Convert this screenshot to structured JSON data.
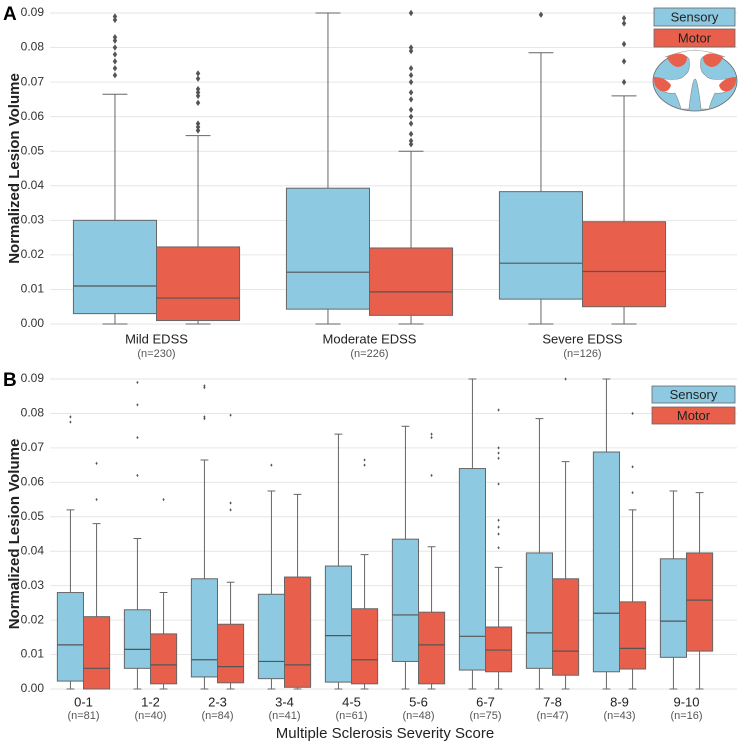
{
  "chart_data": [
    {
      "type": "box",
      "panel_label": "A",
      "ylabel": "Normalized Lesion Volume",
      "categories": [
        "Mild EDSS",
        "Moderate EDSS",
        "Severe EDSS"
      ],
      "n_labels": [
        "(n=230)",
        "(n=226)",
        "(n=126)"
      ],
      "ylim": [
        0,
        0.09
      ],
      "yticks": [
        {
          "value": 0,
          "label": "0.00"
        },
        0.01,
        0.02,
        0.03,
        0.04,
        0.05,
        0.06,
        0.07,
        0.08,
        0.09
      ],
      "grid": true,
      "legend": "upper right",
      "series": [
        {
          "name": "Sensory",
          "color": "#8ec9e2",
          "boxes": [
            {
              "whislo": 0,
              "q1": 0.003,
              "med": 0.011,
              "q3": 0.03,
              "whishi": 0.0665,
              "fliers": [
                0.089,
                0.088,
                0.083,
                0.082,
                0.08,
                0.078,
                0.076,
                0.074,
                0.072
              ]
            },
            {
              "whislo": 0,
              "q1": 0.0043,
              "med": 0.015,
              "q3": 0.0393,
              "whishi": 0.09,
              "fliers": []
            },
            {
              "whislo": 0,
              "q1": 0.0072,
              "med": 0.0176,
              "q3": 0.0383,
              "whishi": 0.0785,
              "fliers": [
                0.0895
              ]
            }
          ]
        },
        {
          "name": "Motor",
          "color": "#e8604c",
          "boxes": [
            {
              "whislo": 0,
              "q1": 0.001,
              "med": 0.0075,
              "q3": 0.0223,
              "whishi": 0.0545,
              "fliers": [
                0.0725,
                0.071,
                0.068,
                0.067,
                0.066,
                0.064,
                0.058,
                0.057,
                0.056
              ]
            },
            {
              "whislo": 0,
              "q1": 0.0025,
              "med": 0.0093,
              "q3": 0.022,
              "whishi": 0.05,
              "fliers": [
                0.09,
                0.08,
                0.079,
                0.074,
                0.072,
                0.07,
                0.067,
                0.065,
                0.062,
                0.06,
                0.058,
                0.055,
                0.053,
                0.052
              ]
            },
            {
              "whislo": 0,
              "q1": 0.005,
              "med": 0.0152,
              "q3": 0.0296,
              "whishi": 0.066,
              "fliers": [
                0.0885,
                0.087,
                0.081,
                0.076,
                0.07
              ]
            }
          ]
        }
      ]
    },
    {
      "type": "box",
      "panel_label": "B",
      "ylabel": "Normalized Lesion Volume",
      "xlabel": "Multiple Sclerosis Severity Score",
      "categories": [
        "0-1",
        "1-2",
        "2-3",
        "3-4",
        "4-5",
        "5-6",
        "6-7",
        "7-8",
        "8-9",
        "9-10"
      ],
      "n_labels": [
        "(n=81)",
        "(n=40)",
        "(n=84)",
        "(n=41)",
        "(n=61)",
        "(n=48)",
        "(n=75)",
        "(n=47)",
        "(n=43)",
        "(n=16)"
      ],
      "ylim": [
        0,
        0.09
      ],
      "yticks": [
        {
          "value": 0,
          "label": "0.00"
        },
        0.01,
        0.02,
        0.03,
        0.04,
        0.05,
        0.06,
        0.07,
        0.08,
        0.09
      ],
      "grid": true,
      "legend": "upper right",
      "series": [
        {
          "name": "Sensory",
          "color": "#8ec9e2",
          "boxes": [
            {
              "whislo": 0,
              "q1": 0.0023,
              "med": 0.0128,
              "q3": 0.028,
              "whishi": 0.052,
              "fliers": [
                0.079,
                0.0775
              ]
            },
            {
              "whislo": 0,
              "q1": 0.006,
              "med": 0.0115,
              "q3": 0.023,
              "whishi": 0.0437,
              "fliers": [
                0.089,
                0.0825,
                0.073,
                0.062
              ]
            },
            {
              "whislo": 0,
              "q1": 0.0035,
              "med": 0.0085,
              "q3": 0.032,
              "whishi": 0.0665,
              "fliers": [
                0.088,
                0.0875,
                0.079,
                0.0785
              ]
            },
            {
              "whislo": 0,
              "q1": 0.003,
              "med": 0.008,
              "q3": 0.0275,
              "whishi": 0.0575,
              "fliers": [
                0.065
              ]
            },
            {
              "whislo": 0,
              "q1": 0.002,
              "med": 0.0155,
              "q3": 0.0357,
              "whishi": 0.074,
              "fliers": []
            },
            {
              "whislo": 0,
              "q1": 0.008,
              "med": 0.0215,
              "q3": 0.0435,
              "whishi": 0.0763,
              "fliers": []
            },
            {
              "whislo": 0,
              "q1": 0.0055,
              "med": 0.0153,
              "q3": 0.064,
              "whishi": 0.09,
              "fliers": []
            },
            {
              "whislo": 0,
              "q1": 0.006,
              "med": 0.0163,
              "q3": 0.0395,
              "whishi": 0.0785,
              "fliers": []
            },
            {
              "whislo": 0,
              "q1": 0.005,
              "med": 0.022,
              "q3": 0.0688,
              "whishi": 0.09,
              "fliers": []
            },
            {
              "whislo": 0,
              "q1": 0.0092,
              "med": 0.0197,
              "q3": 0.0378,
              "whishi": 0.0575,
              "fliers": []
            }
          ]
        },
        {
          "name": "Motor",
          "color": "#e8604c",
          "boxes": [
            {
              "whislo": 0,
              "q1": 0,
              "med": 0.006,
              "q3": 0.021,
              "whishi": 0.048,
              "fliers": [
                0.0655,
                0.055
              ]
            },
            {
              "whislo": 0,
              "q1": 0.0015,
              "med": 0.007,
              "q3": 0.016,
              "whishi": 0.028,
              "fliers": [
                0.055
              ]
            },
            {
              "whislo": 0,
              "q1": 0.0018,
              "med": 0.0065,
              "q3": 0.0188,
              "whishi": 0.031,
              "fliers": [
                0.0795,
                0.054,
                0.052
              ]
            },
            {
              "whislo": 0,
              "q1": 0.0005,
              "med": 0.007,
              "q3": 0.0325,
              "whishi": 0.0565,
              "fliers": []
            },
            {
              "whislo": 0,
              "q1": 0.0015,
              "med": 0.0085,
              "q3": 0.0233,
              "whishi": 0.039,
              "fliers": [
                0.0665,
                0.065
              ]
            },
            {
              "whislo": 0,
              "q1": 0.0015,
              "med": 0.0128,
              "q3": 0.0223,
              "whishi": 0.0413,
              "fliers": [
                0.074,
                0.073,
                0.062
              ]
            },
            {
              "whislo": 0,
              "q1": 0.005,
              "med": 0.0113,
              "q3": 0.018,
              "whishi": 0.0353,
              "fliers": [
                0.081,
                0.07,
                0.0685,
                0.067,
                0.0595,
                0.049,
                0.047,
                0.045,
                0.041
              ]
            },
            {
              "whislo": 0,
              "q1": 0.004,
              "med": 0.011,
              "q3": 0.032,
              "whishi": 0.066,
              "fliers": [
                0.09
              ]
            },
            {
              "whislo": 0,
              "q1": 0.0058,
              "med": 0.0118,
              "q3": 0.0253,
              "whishi": 0.052,
              "fliers": [
                0.08,
                0.0645,
                0.057
              ]
            },
            {
              "whislo": 0,
              "q1": 0.011,
              "med": 0.0258,
              "q3": 0.0395,
              "whishi": 0.057,
              "fliers": []
            }
          ]
        }
      ]
    }
  ]
}
